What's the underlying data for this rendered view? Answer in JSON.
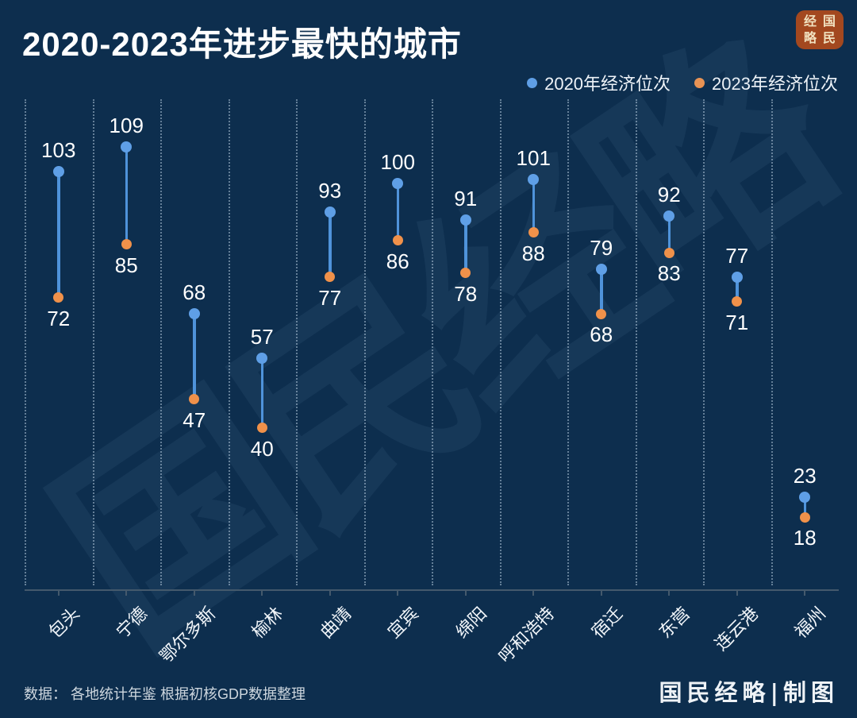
{
  "title": "2020-2023年进步最快的城市",
  "badge": {
    "cells": [
      "经",
      "国",
      "略",
      "民"
    ]
  },
  "watermark": "国民经略",
  "chart_data": {
    "type": "scatter",
    "variant": "dumbbell",
    "title": "2020-2023年进步最快的城市",
    "categories": [
      "包头",
      "宁德",
      "鄂尔多斯",
      "榆林",
      "曲靖",
      "宜宾",
      "绵阳",
      "呼和浩特",
      "宿迁",
      "东营",
      "连云港",
      "福州"
    ],
    "series": [
      {
        "name": "2020年经济位次",
        "color": "#5f9fe6",
        "values": [
          103,
          109,
          68,
          57,
          93,
          100,
          91,
          101,
          79,
          92,
          77,
          23
        ]
      },
      {
        "name": "2023年经济位次",
        "color": "#f0914a",
        "values": [
          72,
          85,
          47,
          40,
          77,
          86,
          78,
          88,
          68,
          83,
          71,
          18
        ]
      }
    ],
    "ylim": [
      0,
      120
    ],
    "grid": "vertical-dotted",
    "legend_position": "top-right",
    "connector_color": "#4f93da"
  },
  "footer": {
    "source": "数据： 各地统计年鉴 根据初核GDP数据整理",
    "credit": "国民经略|制图"
  }
}
